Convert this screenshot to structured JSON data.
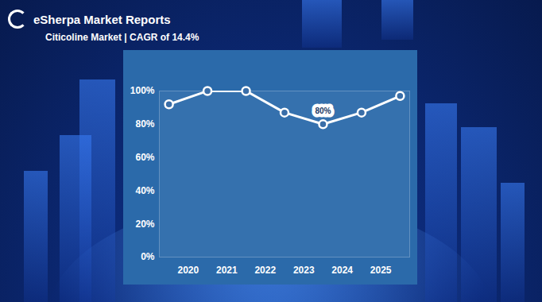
{
  "header": {
    "logo_text": "eSherpa Market Reports"
  },
  "chart_data": {
    "type": "line",
    "title": "Citicoline Market | CAGR of 14.4%",
    "x": [
      2019.5,
      2020.5,
      2021.5,
      2022.5,
      2023.5,
      2024.5,
      2025.5
    ],
    "values": [
      92,
      100,
      100,
      87,
      80,
      87,
      97
    ],
    "color": "#ffffff",
    "marker": "circle",
    "xlim": [
      2019.25,
      2025.75
    ],
    "xticks": [
      2020,
      2021,
      2022,
      2023,
      2024,
      2025
    ],
    "ylim": [
      0,
      100
    ],
    "yticks": [
      {
        "value": 0,
        "label": "0%"
      },
      {
        "value": 20,
        "label": "20%"
      },
      {
        "value": 40,
        "label": "40%"
      },
      {
        "value": 60,
        "label": "60%"
      },
      {
        "value": 80,
        "label": "80%"
      },
      {
        "value": 100,
        "label": "100%"
      }
    ],
    "grid": false,
    "annotations": [
      {
        "x": 2023.5,
        "y": 80,
        "text": "80%"
      }
    ]
  }
}
